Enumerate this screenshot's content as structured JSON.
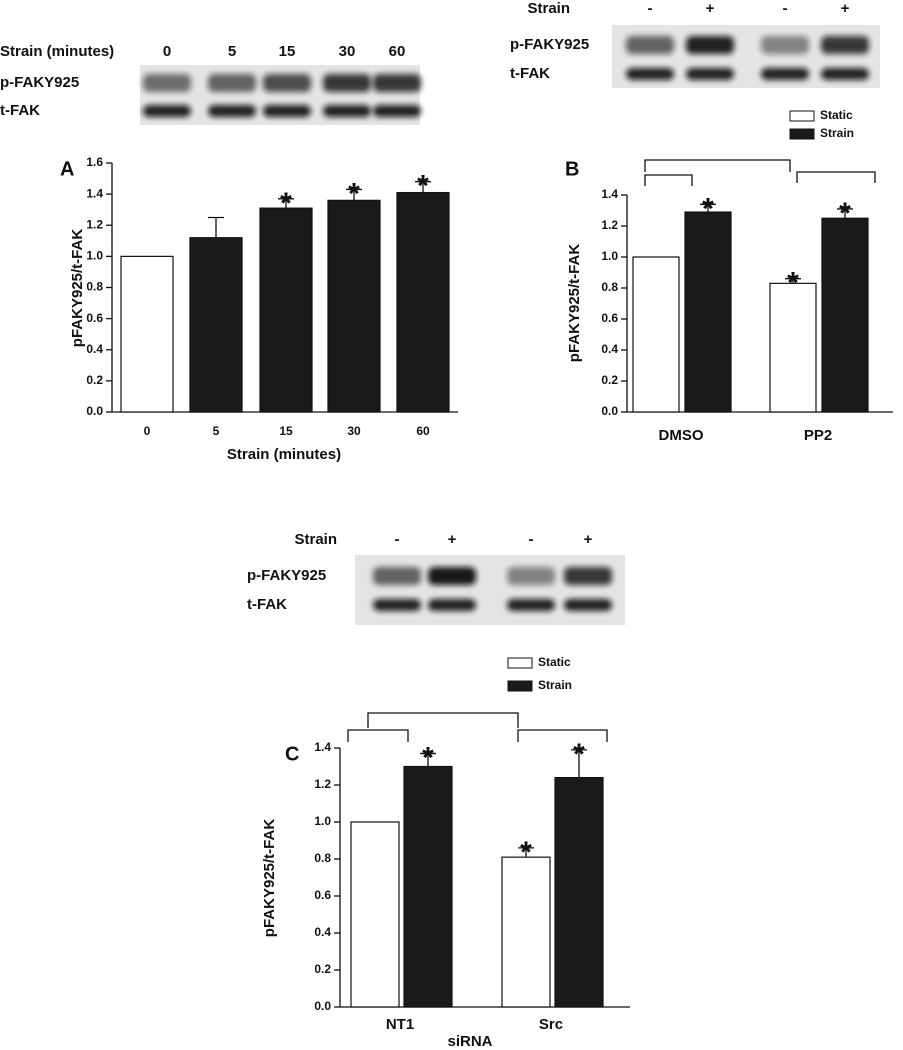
{
  "chart_data": [
    {
      "type": "bar",
      "panel_label": "A",
      "ylabel": "pFAKY925/t-FAK",
      "xlabel": "Strain (minutes)",
      "categories": [
        "0",
        "5",
        "15",
        "30",
        "60"
      ],
      "values": [
        1.0,
        1.12,
        1.31,
        1.36,
        1.41
      ],
      "errors": [
        null,
        0.13,
        0.06,
        0.07,
        0.07
      ],
      "colors": [
        "#ffffff",
        "#1a1a1a",
        "#1a1a1a",
        "#1a1a1a",
        "#1a1a1a"
      ],
      "annotations": [
        null,
        null,
        "*",
        "*",
        "*"
      ],
      "ylim": [
        0,
        1.6
      ],
      "yticks": [
        {
          "value": 0,
          "label": "0.0"
        },
        {
          "value": 0.2,
          "label": "0.2"
        },
        {
          "value": 0.4,
          "label": "0.4"
        },
        {
          "value": 0.6,
          "label": "0.6"
        },
        {
          "value": 0.8,
          "label": "0.8"
        },
        {
          "value": 1.0,
          "label": "1.0"
        },
        {
          "value": 1.2,
          "label": "1.2"
        },
        {
          "value": 1.4,
          "label": "1.4"
        },
        {
          "value": 1.6,
          "label": "1.6"
        }
      ],
      "blot": {
        "header": "Strain (minutes)",
        "lanes": [
          "0",
          "5",
          "15",
          "30",
          "60"
        ],
        "rows": [
          "p-FAKY925",
          "t-FAK"
        ]
      }
    },
    {
      "type": "grouped-bar",
      "panel_label": "B",
      "ylabel": "pFAKY925/t-FAK",
      "categories": [
        "DMSO",
        "PP2"
      ],
      "series": [
        {
          "name": "Static",
          "color": "#ffffff",
          "values": [
            1.0,
            0.83
          ],
          "errors": [
            null,
            0.03
          ],
          "annotations": [
            null,
            "*"
          ]
        },
        {
          "name": "Strain",
          "color": "#1a1a1a",
          "values": [
            1.29,
            1.25
          ],
          "errors": [
            0.05,
            0.06
          ],
          "annotations": [
            "*",
            "*"
          ]
        }
      ],
      "ylim": [
        0,
        1.4
      ],
      "yticks": [
        {
          "value": 0,
          "label": "0.0"
        },
        {
          "value": 0.2,
          "label": "0.2"
        },
        {
          "value": 0.4,
          "label": "0.4"
        },
        {
          "value": 0.6,
          "label": "0.6"
        },
        {
          "value": 0.8,
          "label": "0.8"
        },
        {
          "value": 1.0,
          "label": "1.0"
        },
        {
          "value": 1.2,
          "label": "1.2"
        },
        {
          "value": 1.4,
          "label": "1.4"
        }
      ],
      "blot": {
        "header": "Strain",
        "lanes": [
          "-",
          "+",
          "-",
          "+"
        ],
        "rows": [
          "p-FAKY925",
          "t-FAK"
        ]
      }
    },
    {
      "type": "grouped-bar",
      "panel_label": "C",
      "ylabel": "pFAKY925/t-FAK",
      "xlabel": "siRNA",
      "categories": [
        "NT1",
        "Src"
      ],
      "series": [
        {
          "name": "Static",
          "color": "#ffffff",
          "values": [
            1.0,
            0.81
          ],
          "errors": [
            null,
            0.05
          ],
          "annotations": [
            null,
            "*"
          ]
        },
        {
          "name": "Strain",
          "color": "#1a1a1a",
          "values": [
            1.3,
            1.24
          ],
          "errors": [
            0.07,
            0.15
          ],
          "annotations": [
            "*",
            "*"
          ]
        }
      ],
      "ylim": [
        0,
        1.4
      ],
      "yticks": [
        {
          "value": 0,
          "label": "0.0"
        },
        {
          "value": 0.2,
          "label": "0.2"
        },
        {
          "value": 0.4,
          "label": "0.4"
        },
        {
          "value": 0.6,
          "label": "0.6"
        },
        {
          "value": 0.8,
          "label": "0.8"
        },
        {
          "value": 1.0,
          "label": "1.0"
        },
        {
          "value": 1.2,
          "label": "1.2"
        },
        {
          "value": 1.4,
          "label": "1.4"
        }
      ],
      "blot": {
        "header": "Strain",
        "lanes": [
          "-",
          "+",
          "-",
          "+"
        ],
        "rows": [
          "p-FAKY925",
          "t-FAK"
        ]
      }
    }
  ]
}
